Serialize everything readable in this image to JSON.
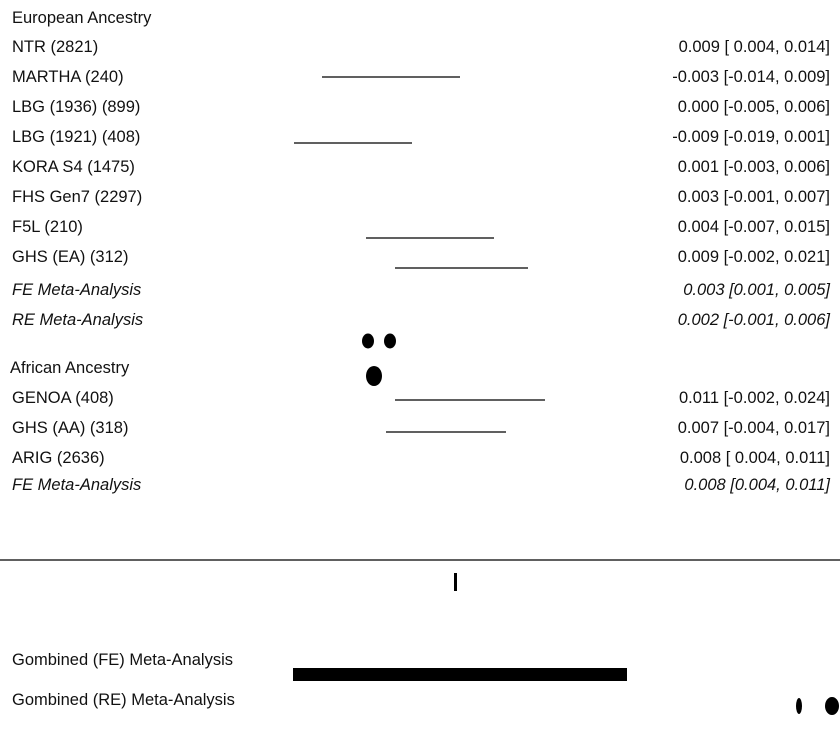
{
  "sections": [
    {
      "title": "European Ancestry",
      "rows": [
        {
          "label": "NTR (2821)",
          "estimate": "0.009 [ 0.004, 0.014]"
        },
        {
          "label": "MARTHA (240)",
          "estimate": "-0.003 [-0.014, 0.009]"
        },
        {
          "label": "LBG (1936) (899)",
          "estimate": "0.000 [-0.005, 0.006]"
        },
        {
          "label": "LBG (1921) (408)",
          "estimate": "-0.009 [-0.019, 0.001]"
        },
        {
          "label": "KORA S4 (1475)",
          "estimate": "0.001 [-0.003, 0.006]"
        },
        {
          "label": "FHS Gen7 (2297)",
          "estimate": "0.003 [-0.001, 0.007]"
        },
        {
          "label": "F5L (210)",
          "estimate": "0.004 [-0.007, 0.015]"
        },
        {
          "label": "GHS (EA) (312)",
          "estimate": "0.009 [-0.002, 0.021]"
        }
      ],
      "meta": [
        {
          "label": "FE Meta-Analysis",
          "estimate": "0.003 [0.001, 0.005]"
        },
        {
          "label": "RE Meta-Analysis",
          "estimate": "0.002 [-0.001, 0.006]"
        }
      ]
    },
    {
      "title": "African Ancestry",
      "rows": [
        {
          "label": "GENOA (408)",
          "estimate": "0.011 [-0.002, 0.024]"
        },
        {
          "label": "GHS (AA) (318)",
          "estimate": "0.007 [-0.004, 0.017]"
        },
        {
          "label": "ARIG (2636)",
          "estimate": "0.008 [ 0.004, 0.011]"
        }
      ],
      "meta": [
        {
          "label": "FE Meta-Analysis",
          "estimate": "0.008 [0.004, 0.011]"
        }
      ]
    }
  ],
  "combined": [
    "Gombined (FE) Meta-Analysis",
    "Gombined (RE) Meta-Analysis"
  ]
}
